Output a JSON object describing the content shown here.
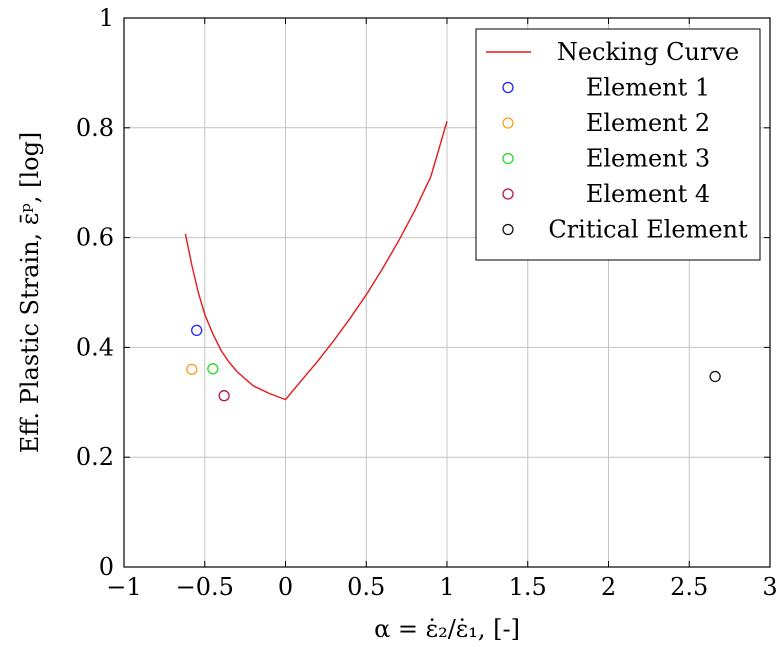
{
  "chart_data": {
    "type": "scatter",
    "xlabel": "α = ε̇₂/ε̇₁, [-]",
    "ylabel": "Eff. Plastic Strain, ε̄ᵖ, [log]",
    "xlim": [
      -1,
      3
    ],
    "ylim": [
      0,
      1
    ],
    "xticks": [
      -1,
      -0.5,
      0,
      0.5,
      1,
      1.5,
      2,
      2.5,
      3
    ],
    "xtick_labels": [
      "−1",
      "−0.5",
      "0",
      "0.5",
      "1",
      "1.5",
      "2",
      "2.5",
      "3"
    ],
    "yticks": [
      0,
      0.2,
      0.4,
      0.6,
      0.8,
      1
    ],
    "ytick_labels": [
      "0",
      "0.2",
      "0.4",
      "0.6",
      "0.8",
      "1"
    ],
    "grid": true,
    "legend_position": "top-right",
    "series": [
      {
        "name": "Necking Curve",
        "kind": "line",
        "color": "#e41a1c",
        "x": [
          -0.62,
          -0.58,
          -0.54,
          -0.5,
          -0.45,
          -0.4,
          -0.35,
          -0.3,
          -0.2,
          -0.1,
          0,
          0.1,
          0.2,
          0.3,
          0.4,
          0.5,
          0.6,
          0.7,
          0.8,
          0.9,
          1.0
        ],
        "y": [
          0.607,
          0.55,
          0.5,
          0.46,
          0.425,
          0.395,
          0.373,
          0.356,
          0.33,
          0.316,
          0.305,
          0.34,
          0.375,
          0.413,
          0.453,
          0.496,
          0.543,
          0.594,
          0.649,
          0.711,
          0.812
        ]
      },
      {
        "name": "Element 1",
        "kind": "marker",
        "color": "#1f1fff",
        "x": [
          -0.55
        ],
        "y": [
          0.431
        ]
      },
      {
        "name": "Element 2",
        "kind": "marker",
        "color": "#ff9a1a",
        "x": [
          -0.58
        ],
        "y": [
          0.36
        ]
      },
      {
        "name": "Element 3",
        "kind": "marker",
        "color": "#22dd22",
        "x": [
          -0.45
        ],
        "y": [
          0.361
        ]
      },
      {
        "name": "Element 4",
        "kind": "marker",
        "color": "#c0104a",
        "x": [
          -0.38
        ],
        "y": [
          0.312
        ]
      },
      {
        "name": "Critical Element",
        "kind": "marker",
        "color": "#111111",
        "x": [
          2.66
        ],
        "y": [
          0.347
        ]
      }
    ]
  }
}
